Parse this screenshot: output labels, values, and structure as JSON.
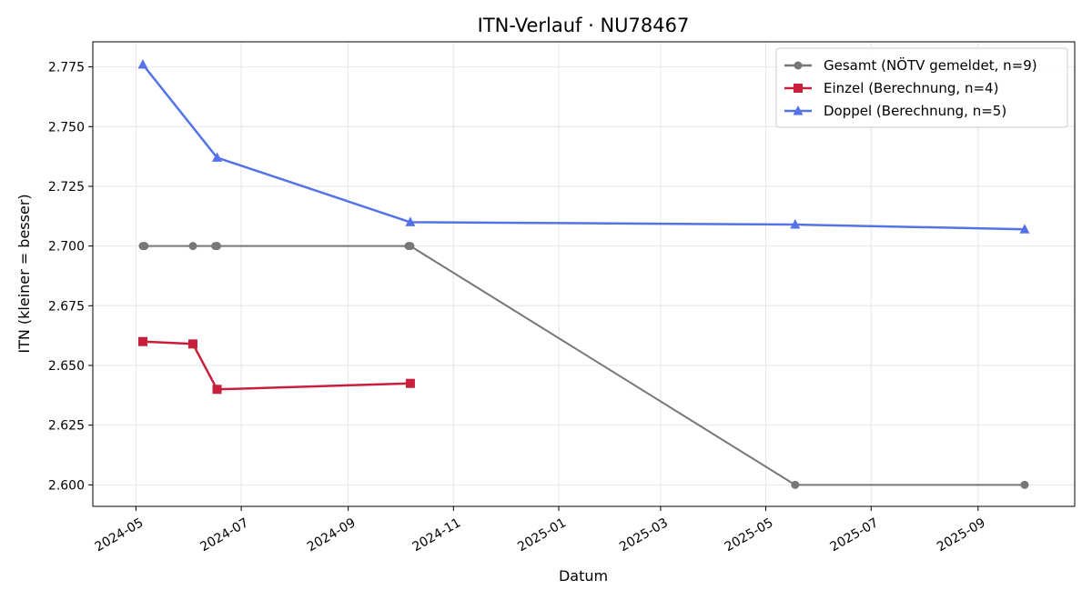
{
  "chart_data": {
    "type": "line",
    "title": "ITN-Verlauf · NU78467",
    "xlabel": "Datum",
    "ylabel": "ITN  (kleiner = besser)",
    "xlim": [
      "2024-04-06",
      "2025-10-27"
    ],
    "ylim": [
      2.591,
      2.7855
    ],
    "x_ticks": [
      "2024-05-01",
      "2024-07-01",
      "2024-09-01",
      "2024-11-01",
      "2025-01-01",
      "2025-03-01",
      "2025-05-01",
      "2025-07-01",
      "2025-09-01"
    ],
    "x_tick_labels": [
      "2024-05",
      "2024-07",
      "2024-09",
      "2024-11",
      "2025-01",
      "2025-03",
      "2025-05",
      "2025-07",
      "2025-09"
    ],
    "y_ticks": [
      2.6,
      2.625,
      2.65,
      2.675,
      2.7,
      2.725,
      2.75,
      2.775
    ],
    "y_tick_labels": [
      "2.600",
      "2.625",
      "2.650",
      "2.675",
      "2.700",
      "2.725",
      "2.750",
      "2.775"
    ],
    "grid": true,
    "legend_position": "top-right",
    "series": [
      {
        "name": "Gesamt (NÖTV gemeldet, n=9)",
        "color": "#777777",
        "marker": "circle",
        "points": [
          {
            "x": "2024-05-05",
            "y": 2.7
          },
          {
            "x": "2024-05-06",
            "y": 2.7
          },
          {
            "x": "2024-06-03",
            "y": 2.7
          },
          {
            "x": "2024-06-16",
            "y": 2.7
          },
          {
            "x": "2024-06-17",
            "y": 2.7
          },
          {
            "x": "2024-10-06",
            "y": 2.7
          },
          {
            "x": "2024-10-07",
            "y": 2.7
          },
          {
            "x": "2025-05-18",
            "y": 2.6
          },
          {
            "x": "2025-09-28",
            "y": 2.6
          }
        ]
      },
      {
        "name": "Einzel (Berechnung, n=4)",
        "color": "#c8203c",
        "marker": "square",
        "points": [
          {
            "x": "2024-05-05",
            "y": 2.66
          },
          {
            "x": "2024-06-03",
            "y": 2.659
          },
          {
            "x": "2024-06-17",
            "y": 2.64
          },
          {
            "x": "2024-10-07",
            "y": 2.6425
          }
        ]
      },
      {
        "name": "Doppel (Berechnung, n=5)",
        "color": "#5572e8",
        "marker": "triangle",
        "points": [
          {
            "x": "2024-05-05",
            "y": 2.776
          },
          {
            "x": "2024-06-17",
            "y": 2.737
          },
          {
            "x": "2024-10-07",
            "y": 2.71
          },
          {
            "x": "2025-05-18",
            "y": 2.709
          },
          {
            "x": "2025-09-28",
            "y": 2.707
          }
        ]
      }
    ]
  }
}
